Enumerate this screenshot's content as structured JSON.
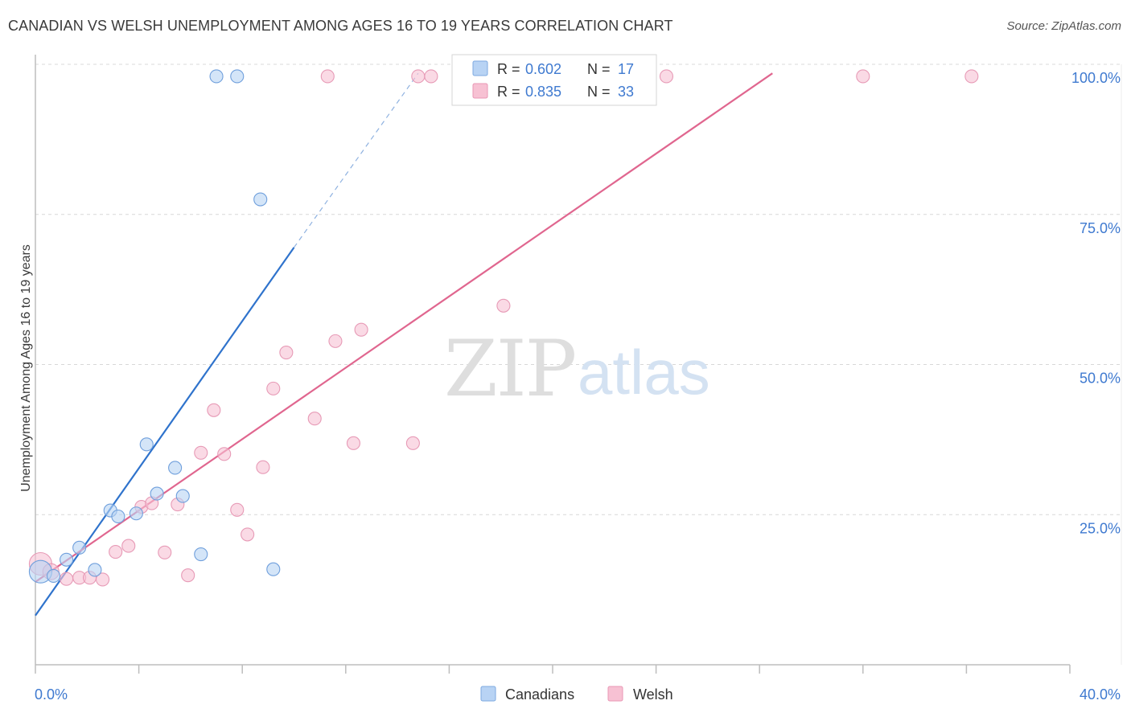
{
  "title": "CANADIAN VS WELSH UNEMPLOYMENT AMONG AGES 16 TO 19 YEARS CORRELATION CHART",
  "source": "Source: ZipAtlas.com",
  "watermark": {
    "zip": "ZIP",
    "atlas": "atlas"
  },
  "colors": {
    "canadians": "#2f73cc",
    "canadians_fill": "#b8d3f4",
    "welsh": "#e0668f",
    "welsh_fill": "#f7c1d3",
    "tick_label": "#3f7ad0",
    "grid": "#d8d8d8"
  },
  "legend_top": {
    "rows": [
      {
        "series": "canadians",
        "r_label": "R = ",
        "r_value": "0.602",
        "n_label": "N = ",
        "n_value": "17"
      },
      {
        "series": "welsh",
        "r_label": "R = ",
        "r_value": "0.835",
        "n_label": "N = ",
        "n_value": "33"
      }
    ]
  },
  "legend_bottom": [
    {
      "series": "canadians",
      "label": "Canadians"
    },
    {
      "series": "welsh",
      "label": "Welsh"
    }
  ],
  "chart_data": {
    "type": "scatter",
    "title": "CANADIAN VS WELSH UNEMPLOYMENT AMONG AGES 16 TO 19 YEARS CORRELATION CHART",
    "xlabel": "",
    "ylabel": "Unemployment Among Ages 16 to 19 years",
    "xlim": [
      0,
      40
    ],
    "ylim": [
      0,
      100
    ],
    "x_tick_labels": [
      {
        "value": 0,
        "label": "0.0%"
      },
      {
        "value": 40,
        "label": "40.0%"
      }
    ],
    "y_tick_labels": [
      {
        "value": 25,
        "label": "25.0%"
      },
      {
        "value": 50,
        "label": "50.0%"
      },
      {
        "value": 75,
        "label": "75.0%"
      },
      {
        "value": 100,
        "label": "100.0%"
      }
    ],
    "x_minor_ticks": [
      0,
      4,
      8,
      12,
      16,
      20,
      24,
      28,
      32,
      36,
      40
    ],
    "series": [
      {
        "name": "Canadians",
        "key": "canadians",
        "r": 0.602,
        "n": 17,
        "points": [
          {
            "x": 0.2,
            "y": 15.5,
            "size": 14
          },
          {
            "x": 0.7,
            "y": 14.8,
            "size": 8
          },
          {
            "x": 1.2,
            "y": 17.5,
            "size": 8
          },
          {
            "x": 1.7,
            "y": 19.5,
            "size": 8
          },
          {
            "x": 2.3,
            "y": 15.8,
            "size": 8
          },
          {
            "x": 2.9,
            "y": 25.7,
            "size": 8
          },
          {
            "x": 3.2,
            "y": 24.7,
            "size": 8
          },
          {
            "x": 3.9,
            "y": 25.2,
            "size": 8
          },
          {
            "x": 4.3,
            "y": 36.7,
            "size": 8
          },
          {
            "x": 4.7,
            "y": 28.5,
            "size": 8
          },
          {
            "x": 5.4,
            "y": 32.8,
            "size": 8
          },
          {
            "x": 5.7,
            "y": 28.1,
            "size": 8
          },
          {
            "x": 6.4,
            "y": 18.4,
            "size": 8
          },
          {
            "x": 7.0,
            "y": 98.0,
            "size": 8
          },
          {
            "x": 7.8,
            "y": 98.0,
            "size": 8
          },
          {
            "x": 8.7,
            "y": 77.5,
            "size": 8
          },
          {
            "x": 9.2,
            "y": 15.9,
            "size": 8
          }
        ],
        "trend": {
          "x1": 0,
          "y1": 8.2,
          "x2": 10.0,
          "y2": 69.5,
          "dash_to_x": 14.8,
          "dash_to_y": 98.5
        }
      },
      {
        "name": "Welsh",
        "key": "welsh",
        "r": 0.835,
        "n": 33,
        "points": [
          {
            "x": 0.2,
            "y": 16.8,
            "size": 14
          },
          {
            "x": 0.6,
            "y": 15.5,
            "size": 10
          },
          {
            "x": 1.2,
            "y": 14.3,
            "size": 8
          },
          {
            "x": 1.7,
            "y": 14.5,
            "size": 8
          },
          {
            "x": 2.1,
            "y": 14.5,
            "size": 8
          },
          {
            "x": 2.6,
            "y": 14.2,
            "size": 8
          },
          {
            "x": 3.1,
            "y": 18.8,
            "size": 8
          },
          {
            "x": 3.6,
            "y": 19.8,
            "size": 8
          },
          {
            "x": 4.1,
            "y": 26.3,
            "size": 8
          },
          {
            "x": 4.5,
            "y": 26.9,
            "size": 8
          },
          {
            "x": 5.0,
            "y": 18.7,
            "size": 8
          },
          {
            "x": 5.5,
            "y": 26.7,
            "size": 8
          },
          {
            "x": 5.9,
            "y": 14.9,
            "size": 8
          },
          {
            "x": 6.4,
            "y": 35.3,
            "size": 8
          },
          {
            "x": 6.9,
            "y": 42.4,
            "size": 8
          },
          {
            "x": 7.3,
            "y": 35.1,
            "size": 8
          },
          {
            "x": 7.8,
            "y": 25.8,
            "size": 8
          },
          {
            "x": 8.2,
            "y": 21.7,
            "size": 8
          },
          {
            "x": 8.8,
            "y": 32.9,
            "size": 8
          },
          {
            "x": 9.2,
            "y": 46.0,
            "size": 8
          },
          {
            "x": 9.7,
            "y": 52.0,
            "size": 8
          },
          {
            "x": 10.8,
            "y": 41.0,
            "size": 8
          },
          {
            "x": 11.3,
            "y": 98.0,
            "size": 8
          },
          {
            "x": 11.6,
            "y": 53.9,
            "size": 8
          },
          {
            "x": 12.3,
            "y": 36.9,
            "size": 8
          },
          {
            "x": 12.6,
            "y": 55.8,
            "size": 8
          },
          {
            "x": 14.6,
            "y": 36.9,
            "size": 8
          },
          {
            "x": 14.8,
            "y": 98.0,
            "size": 8
          },
          {
            "x": 15.3,
            "y": 98.0,
            "size": 8
          },
          {
            "x": 18.1,
            "y": 59.8,
            "size": 8
          },
          {
            "x": 24.4,
            "y": 98.0,
            "size": 8
          },
          {
            "x": 32.0,
            "y": 98.0,
            "size": 8
          },
          {
            "x": 36.2,
            "y": 98.0,
            "size": 8
          }
        ],
        "trend": {
          "x1": 0,
          "y1": 13.8,
          "x2": 28.5,
          "y2": 98.5
        }
      }
    ]
  }
}
